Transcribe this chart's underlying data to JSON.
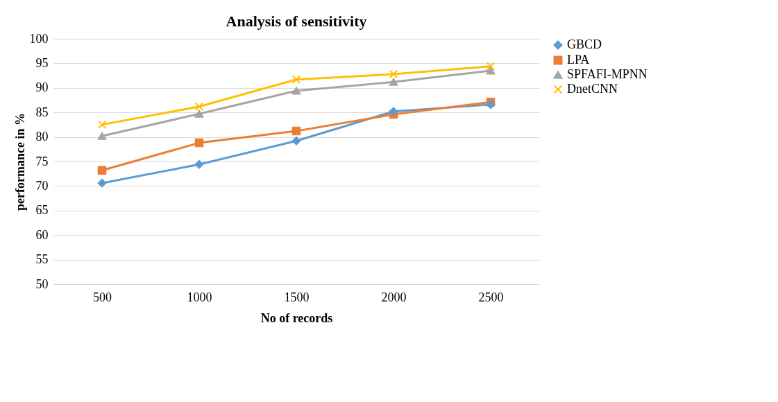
{
  "chart_data": {
    "type": "line",
    "title": "Analysis of sensitivity",
    "xlabel": "No of records",
    "ylabel": "performance  in %",
    "categories": [
      "500",
      "1000",
      "1500",
      "2000",
      "2500"
    ],
    "series": [
      {
        "name": "GBCD",
        "color": "#5b9bd5",
        "marker": "diamond",
        "values": [
          70.6,
          74.4,
          79.2,
          85.2,
          86.6
        ]
      },
      {
        "name": "LPA",
        "color": "#ed7d31",
        "marker": "square",
        "values": [
          73.2,
          78.8,
          81.2,
          84.6,
          87.1
        ]
      },
      {
        "name": "SPFAFI-MPNN",
        "color": "#a5a5a5",
        "marker": "triangle",
        "values": [
          80.2,
          84.7,
          89.4,
          91.2,
          93.5
        ]
      },
      {
        "name": "DnetCNN",
        "color": "#ffc000",
        "marker": "cross",
        "values": [
          82.5,
          86.2,
          91.7,
          92.8,
          94.4
        ]
      }
    ],
    "ylim": [
      50,
      100
    ],
    "yticks": [
      50,
      55,
      60,
      65,
      70,
      75,
      80,
      85,
      90,
      95,
      100
    ],
    "grid": "y",
    "legend": "right",
    "line_style": "solid"
  }
}
